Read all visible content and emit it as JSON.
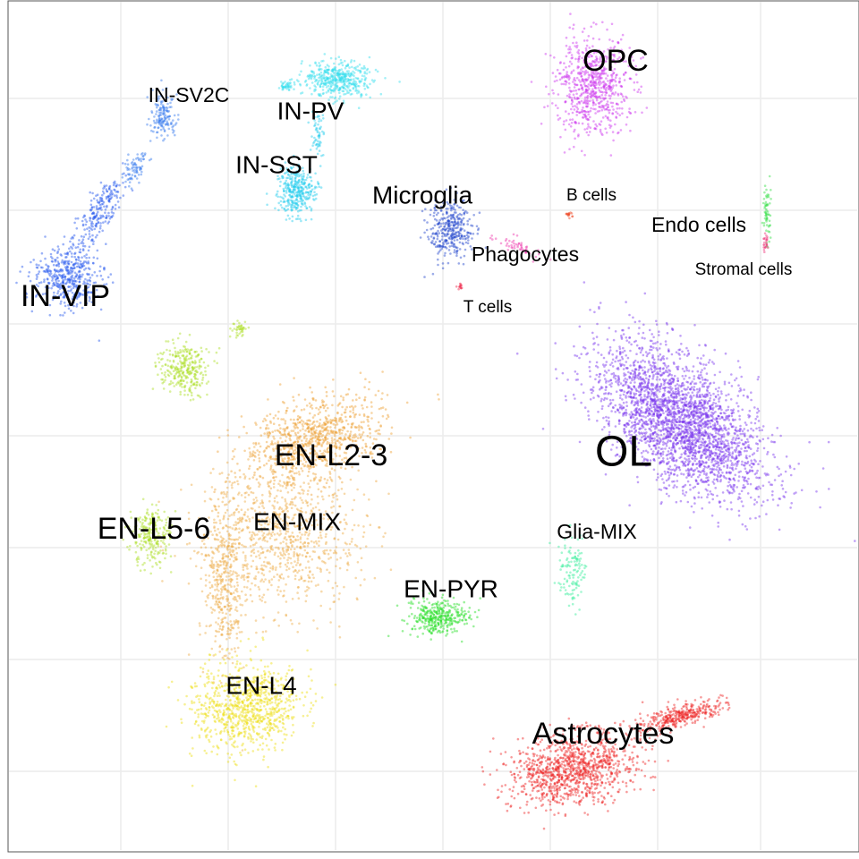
{
  "chart_data": {
    "type": "scatter",
    "title": "",
    "xlabel": "",
    "ylabel": "",
    "grid": true,
    "legend": "none",
    "clusters": [
      {
        "label": "OPC",
        "color": "#cc33ee",
        "label_size": "large"
      },
      {
        "label": "IN-SV2C",
        "color": "#3377ee",
        "label_size": "small"
      },
      {
        "label": "IN-PV",
        "color": "#33ddee",
        "label_size": "medium"
      },
      {
        "label": "IN-SST",
        "color": "#22ccee",
        "label_size": "medium"
      },
      {
        "label": "Microglia",
        "color": "#2244cc",
        "label_size": "medium"
      },
      {
        "label": "B cells",
        "color": "#ee4422",
        "label_size": "tiny"
      },
      {
        "label": "Endo cells",
        "color": "#33dd44",
        "label_size": "small"
      },
      {
        "label": "Phagocytes",
        "color": "#ee33aa",
        "label_size": "small"
      },
      {
        "label": "Stromal cells",
        "color": "#ee3377",
        "label_size": "tiny"
      },
      {
        "label": "IN-VIP",
        "color": "#2255ee",
        "label_size": "large"
      },
      {
        "label": "T cells",
        "color": "#ee2244",
        "label_size": "tiny"
      },
      {
        "label": "OL",
        "color": "#7733ee",
        "label_size": "xlarge"
      },
      {
        "label": "EN-L2-3",
        "color": "#eea033",
        "label_size": "large"
      },
      {
        "label": "EN-MIX",
        "color": "#eeaa44",
        "label_size": "medium"
      },
      {
        "label": "EN-L5-6",
        "color": "#aadd22",
        "label_size": "large"
      },
      {
        "label": "Glia-MIX",
        "color": "#33ee99",
        "label_size": "small"
      },
      {
        "label": "EN-PYR",
        "color": "#22dd22",
        "label_size": "medium"
      },
      {
        "label": "EN-L4",
        "color": "#eedd11",
        "label_size": "medium"
      },
      {
        "label": "Astrocytes",
        "color": "#ee2222",
        "label_size": "large"
      }
    ]
  }
}
